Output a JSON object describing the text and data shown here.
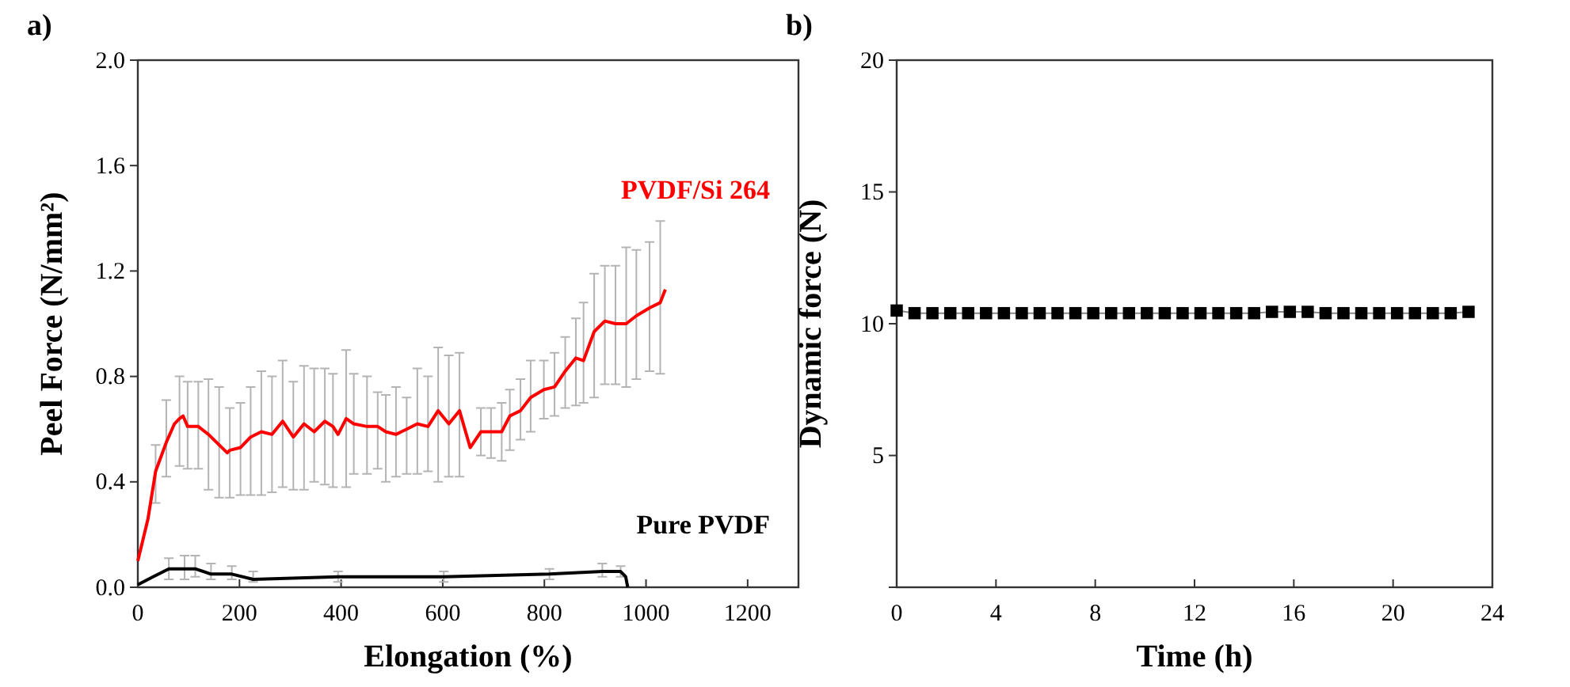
{
  "chart_data": [
    {
      "type": "line",
      "title": "a)",
      "xlabel": "Elongation (%)",
      "ylabel": "Peel Force (N/mm²)",
      "xlim": [
        0,
        1300
      ],
      "xticks": [
        0,
        200,
        400,
        600,
        800,
        1000,
        1200
      ],
      "ylim": [
        0,
        2.0
      ],
      "yticks": [
        {
          "value": 0,
          "label": "0.0"
        },
        0.4,
        0.8,
        1.2,
        1.6,
        {
          "value": 2,
          "label": "2.0"
        }
      ],
      "grid": false,
      "marker": "none",
      "series": [
        {
          "name": "PVDF/Si 264",
          "color": "#ff0000",
          "x": [
            0,
            20,
            35,
            56,
            72,
            82,
            89,
            98,
            119,
            139,
            160,
            176,
            181,
            202,
            222,
            243,
            264,
            285,
            306,
            327,
            347,
            368,
            384,
            394,
            410,
            425,
            451,
            472,
            488,
            508,
            529,
            550,
            571,
            591,
            612,
            633,
            654,
            675,
            695,
            716,
            732,
            753,
            773,
            799,
            820,
            841,
            862,
            877,
            898,
            919,
            940,
            961,
            981,
            1007,
            1028,
            1038
          ],
          "values": [
            0.1,
            0.26,
            0.44,
            0.55,
            0.62,
            0.64,
            0.65,
            0.61,
            0.61,
            0.58,
            0.54,
            0.51,
            0.52,
            0.53,
            0.57,
            0.59,
            0.58,
            0.63,
            0.57,
            0.62,
            0.59,
            0.63,
            0.61,
            0.58,
            0.64,
            0.62,
            0.61,
            0.61,
            0.59,
            0.58,
            0.6,
            0.62,
            0.61,
            0.67,
            0.62,
            0.67,
            0.53,
            0.59,
            0.59,
            0.59,
            0.65,
            0.67,
            0.72,
            0.75,
            0.76,
            0.82,
            0.87,
            0.86,
            0.97,
            1.01,
            1.0,
            1.0,
            1.03,
            1.06,
            1.08,
            1.13
          ],
          "errors": [
            null,
            null,
            [
              0.32,
              0.54
            ],
            [
              0.42,
              0.71
            ],
            null,
            [
              0.46,
              0.8
            ],
            null,
            [
              0.45,
              0.78
            ],
            [
              0.45,
              0.78
            ],
            [
              0.37,
              0.79
            ],
            [
              0.34,
              0.76
            ],
            null,
            [
              0.34,
              0.68
            ],
            [
              0.35,
              0.7
            ],
            [
              0.35,
              0.76
            ],
            [
              0.35,
              0.82
            ],
            [
              0.36,
              0.8
            ],
            [
              0.38,
              0.86
            ],
            [
              0.37,
              0.78
            ],
            [
              0.37,
              0.84
            ],
            [
              0.4,
              0.83
            ],
            [
              0.39,
              0.83
            ],
            [
              0.38,
              0.81
            ],
            null,
            [
              0.38,
              0.9
            ],
            [
              0.43,
              0.81
            ],
            [
              0.43,
              0.8
            ],
            [
              0.45,
              0.74
            ],
            [
              0.4,
              0.73
            ],
            [
              0.42,
              0.76
            ],
            [
              0.43,
              0.72
            ],
            [
              0.43,
              0.83
            ],
            [
              0.44,
              0.8
            ],
            [
              0.4,
              0.91
            ],
            [
              0.42,
              0.88
            ],
            [
              0.42,
              0.89
            ],
            null,
            [
              0.5,
              0.68
            ],
            [
              0.49,
              0.68
            ],
            [
              0.48,
              0.7
            ],
            [
              0.52,
              0.75
            ],
            [
              0.56,
              0.79
            ],
            [
              0.59,
              0.86
            ],
            [
              0.64,
              0.86
            ],
            [
              0.65,
              0.89
            ],
            [
              0.68,
              0.95
            ],
            [
              0.69,
              1.02
            ],
            [
              0.7,
              1.08
            ],
            [
              0.72,
              1.19
            ],
            [
              0.77,
              1.22
            ],
            [
              0.77,
              1.22
            ],
            [
              0.76,
              1.29
            ],
            [
              0.79,
              1.28
            ],
            [
              0.82,
              1.31
            ],
            [
              0.81,
              1.39
            ],
            null
          ]
        },
        {
          "name": "Pure PVDF",
          "color": "#000000",
          "x": [
            0,
            30,
            61,
            92,
            113,
            144,
            185,
            227,
            394,
            602,
            810,
            914,
            950,
            960,
            964
          ],
          "values": [
            0.01,
            0.04,
            0.07,
            0.07,
            0.07,
            0.05,
            0.05,
            0.03,
            0.04,
            0.04,
            0.05,
            0.06,
            0.06,
            0.04,
            0.0
          ],
          "errors": [
            null,
            null,
            [
              0.03,
              0.11
            ],
            [
              0.03,
              0.12
            ],
            [
              0.04,
              0.12
            ],
            [
              0.03,
              0.09
            ],
            [
              0.03,
              0.08
            ],
            [
              0.02,
              0.06
            ],
            [
              0.02,
              0.06
            ],
            [
              0.02,
              0.06
            ],
            [
              0.03,
              0.07
            ],
            [
              0.04,
              0.09
            ],
            [
              0.04,
              0.08
            ],
            null,
            null
          ]
        }
      ]
    },
    {
      "type": "line",
      "title": "b)",
      "xlabel": "Time (h)",
      "ylabel": "Dynamic force (N)",
      "xlim": [
        0,
        24
      ],
      "xticks": [
        0,
        4,
        8,
        12,
        16,
        20,
        24
      ],
      "ylim": [
        0,
        20
      ],
      "yticks": [
        5,
        10,
        15,
        20
      ],
      "grid": false,
      "marker": "square",
      "series": [
        {
          "color": "#000000",
          "x": [
            0,
            0.72,
            1.44,
            2.16,
            2.88,
            3.6,
            4.32,
            5.04,
            5.76,
            6.48,
            7.2,
            7.92,
            8.64,
            9.36,
            10.08,
            10.8,
            11.52,
            12.24,
            12.96,
            13.68,
            14.4,
            15.12,
            15.84,
            16.56,
            17.28,
            18,
            18.72,
            19.44,
            20.16,
            20.88,
            21.6,
            22.32,
            23.04
          ],
          "values": [
            10.5,
            10.4,
            10.4,
            10.4,
            10.4,
            10.4,
            10.4,
            10.4,
            10.4,
            10.4,
            10.4,
            10.4,
            10.4,
            10.4,
            10.4,
            10.4,
            10.4,
            10.4,
            10.4,
            10.4,
            10.4,
            10.45,
            10.45,
            10.45,
            10.4,
            10.4,
            10.4,
            10.4,
            10.4,
            10.4,
            10.4,
            10.4,
            10.45
          ]
        }
      ]
    }
  ]
}
